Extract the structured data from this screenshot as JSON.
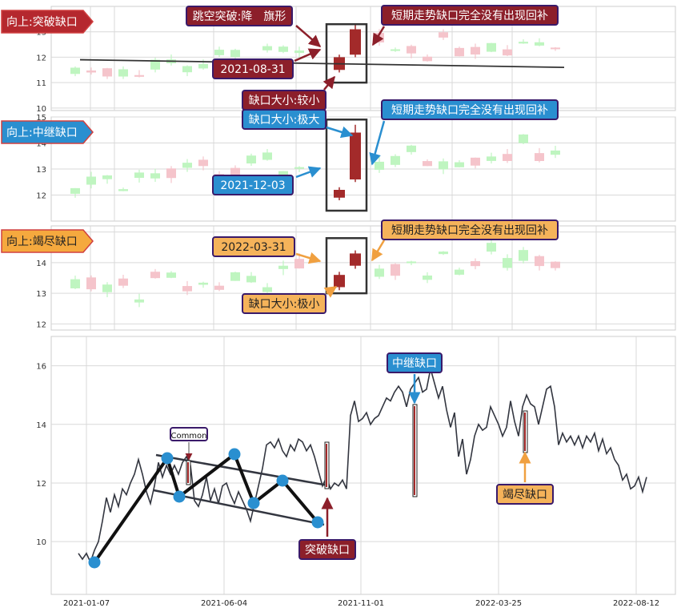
{
  "panels": [
    {
      "id": "p1",
      "tag": "向上:突破缺口",
      "tag_color": "#b5282e",
      "y_ticks": [
        10,
        11,
        12,
        13
      ],
      "ylim": [
        9.9,
        14.0
      ],
      "gap_candles": [
        {
          "o": 11.5,
          "c": 12.0,
          "h": 12.1,
          "l": 11.4
        },
        {
          "o": 12.1,
          "c": 13.1,
          "h": 13.3,
          "l": 12.0
        }
      ],
      "gap_box": {
        "low": 11.0,
        "high": 13.3
      },
      "annotations": {
        "top_left": "跳空突破:降　旗形",
        "date": "2021-08-31",
        "gap_size": "缺口大小:较小",
        "right": "短期走势缺口完全没有出现回补"
      },
      "trend_line": {
        "start": 11.9,
        "end": 11.6
      }
    },
    {
      "id": "p2",
      "tag": "向上:中继缺口",
      "tag_color": "#2a8fd0",
      "y_ticks": [
        12,
        13,
        14,
        15
      ],
      "ylim": [
        11.0,
        15.0
      ],
      "gap_candles": [
        {
          "o": 12.2,
          "c": 11.9,
          "h": 12.3,
          "l": 11.8
        },
        {
          "o": 12.6,
          "c": 14.4,
          "h": 14.7,
          "l": 12.5
        }
      ],
      "gap_box": {
        "low": 11.4,
        "high": 14.9
      },
      "annotations": {
        "gap_size": "缺口大小:极大",
        "date": "2021-12-03",
        "right": "短期走势缺口完全没有出现回补"
      }
    },
    {
      "id": "p3",
      "tag": "向上:竭尽缺口",
      "tag_color": "#f5a93e",
      "y_ticks": [
        12,
        13,
        14,
        15
      ],
      "ylim": [
        11.8,
        15.2
      ],
      "gap_candles": [
        {
          "o": 13.2,
          "c": 13.6,
          "h": 13.7,
          "l": 13.1
        },
        {
          "o": 13.9,
          "c": 14.3,
          "h": 14.4,
          "l": 13.8
        }
      ],
      "gap_box": {
        "low": 13.0,
        "high": 14.8
      },
      "annotations": {
        "date": "2022-03-31",
        "gap_size": "缺口大小:极小",
        "right": "短期走势缺口完全没有出现回补"
      }
    }
  ],
  "chart_data": {
    "type": "line",
    "x_tick_labels": [
      "2021-01-07",
      "2021-06-04",
      "2021-11-01",
      "2022-03-25",
      "2022-08-12"
    ],
    "y_ticks": [
      10,
      12,
      14,
      16
    ],
    "ylim": [
      8.2,
      17.0
    ],
    "grid": true,
    "series": [
      {
        "x": [
          0,
          4,
          8,
          12,
          16,
          20,
          24,
          28,
          32,
          36,
          40,
          44,
          48,
          52,
          56,
          60,
          64,
          68,
          72,
          76,
          80,
          84,
          88,
          92,
          96,
          100,
          104,
          108,
          112,
          116,
          120,
          124,
          128,
          132,
          136,
          140,
          144,
          148,
          152,
          156,
          160,
          164,
          168,
          172,
          176,
          180,
          184,
          188,
          192,
          196,
          200,
          204,
          208,
          212,
          216,
          220,
          224,
          228,
          232,
          236,
          240,
          244,
          248,
          252,
          256,
          260,
          264,
          268,
          272,
          276,
          280,
          284,
          288,
          292,
          296,
          300,
          304,
          308,
          312,
          316,
          320,
          324,
          328,
          332,
          336,
          340,
          344,
          348,
          352,
          356,
          360,
          364,
          368,
          372,
          376,
          380,
          384,
          388,
          392,
          396,
          400,
          404,
          408,
          412,
          416,
          420,
          424,
          428,
          432,
          436,
          440,
          444,
          448,
          452,
          456,
          460,
          464,
          468,
          472,
          476,
          480,
          484,
          488,
          492,
          496,
          500,
          504,
          508,
          512,
          516,
          520,
          524,
          528,
          532,
          536,
          540,
          544,
          548,
          552,
          556,
          560,
          564,
          568
        ],
        "values": [
          9.6,
          9.4,
          9.6,
          9.3,
          9.7,
          10.0,
          10.7,
          11.5,
          11.0,
          11.6,
          11.2,
          11.8,
          11.6,
          12.0,
          12.3,
          12.8,
          12.3,
          11.7,
          11.3,
          11.9,
          12.7,
          12.2,
          12.6,
          12.3,
          12.6,
          12.3,
          12.7,
          12.9,
          12.6,
          11.4,
          11.2,
          11.6,
          12.2,
          11.4,
          11.8,
          11.3,
          11.9,
          12.0,
          11.6,
          11.3,
          11.7,
          11.4,
          11.1,
          10.7,
          11.3,
          11.9,
          12.5,
          13.3,
          13.4,
          13.2,
          13.5,
          13.1,
          12.9,
          13.3,
          13.1,
          13.5,
          13.4,
          13.1,
          13.3,
          12.9,
          12.4,
          11.9,
          12.2,
          11.8,
          12.0,
          11.9,
          12.1,
          11.8,
          14.3,
          14.8,
          14.1,
          14.2,
          14.4,
          14.0,
          14.2,
          14.3,
          14.6,
          14.9,
          14.8,
          15.1,
          15.3,
          15.1,
          14.6,
          15.2,
          15.4,
          15.6,
          15.1,
          15.2,
          15.9,
          15.4,
          14.9,
          15.3,
          14.5,
          13.9,
          14.4,
          12.9,
          13.5,
          12.3,
          12.8,
          13.6,
          14.0,
          13.8,
          13.9,
          14.6,
          14.3,
          14.0,
          13.6,
          13.9,
          14.8,
          14.1,
          13.6,
          14.6,
          15.0,
          14.7,
          14.6,
          14.0,
          14.6,
          15.2,
          15.3,
          14.6,
          13.3,
          13.7,
          13.4,
          13.6,
          13.3,
          13.6,
          13.2,
          13.6,
          13.4,
          13.7,
          13.1,
          13.5,
          13.0,
          13.2,
          12.8,
          12.6,
          12.1,
          12.3,
          11.8,
          11.9,
          12.2,
          11.7,
          12.2
        ]
      }
    ],
    "labels": {
      "common": "Common",
      "continuation": "中继缺口",
      "breakaway": "突破缺口",
      "exhaustion": "竭尽缺口"
    }
  },
  "colors": {
    "up": "#a32a2a",
    "up_faded": "#f5c4cb",
    "down_faded": "#bff5c0",
    "grid": "#d9d9d9",
    "line": "#333640",
    "red_label": "#8c1f2a",
    "blue_label": "#2a8fd0",
    "orange_label": "#f5b35a",
    "pattern_blue": "#2a8fd0"
  }
}
